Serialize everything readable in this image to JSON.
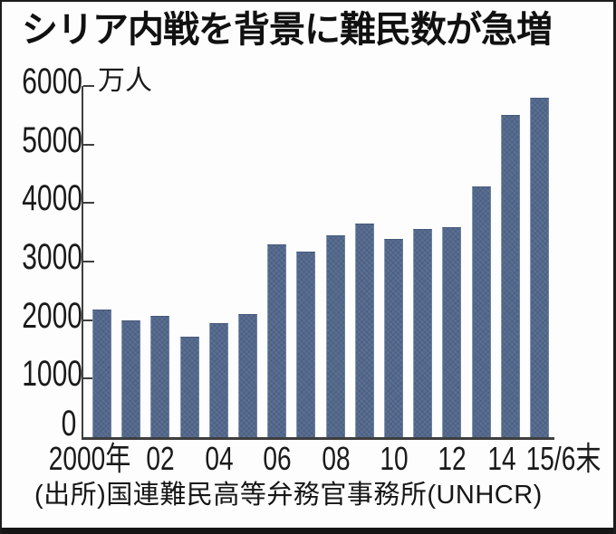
{
  "title": "シリア内戦を背景に難民数が急増",
  "y_axis": {
    "unit": "万人",
    "ticks": [
      "6000",
      "5000",
      "4000",
      "3000",
      "2000",
      "1000",
      "0"
    ]
  },
  "x_axis": {
    "labels": [
      "2000年",
      "02",
      "04",
      "06",
      "08",
      "10",
      "12",
      "14",
      "15/6末"
    ]
  },
  "source": "(出所)国連難民高等弁務官事務所(UNHCR)",
  "colors": {
    "bar": "#53688b",
    "axis": "#3e3e3e",
    "text": "#1a1a1a",
    "frame": "#1c1c1c",
    "background": "#fdfdfd"
  },
  "chart_data": {
    "type": "bar",
    "title": "シリア内戦を背景に難民数が急増",
    "xlabel": "",
    "ylabel": "万人",
    "ylim": [
      0,
      6000
    ],
    "y_tick_step": 1000,
    "grid": false,
    "legend": "none",
    "categories": [
      "2000",
      "01",
      "02",
      "03",
      "04",
      "05",
      "06",
      "07",
      "08",
      "09",
      "10",
      "11",
      "12",
      "13",
      "14",
      "15/6末"
    ],
    "values": [
      2180,
      1990,
      2070,
      1710,
      1950,
      2100,
      3290,
      3170,
      3450,
      3650,
      3390,
      3550,
      3590,
      4290,
      5500,
      5800
    ],
    "x_tick_labels": [
      "2000年",
      "02",
      "04",
      "06",
      "08",
      "10",
      "12",
      "14",
      "15/6末"
    ],
    "source_note": "(出所)国連難民高等弁務官事務所(UNHCR)"
  }
}
